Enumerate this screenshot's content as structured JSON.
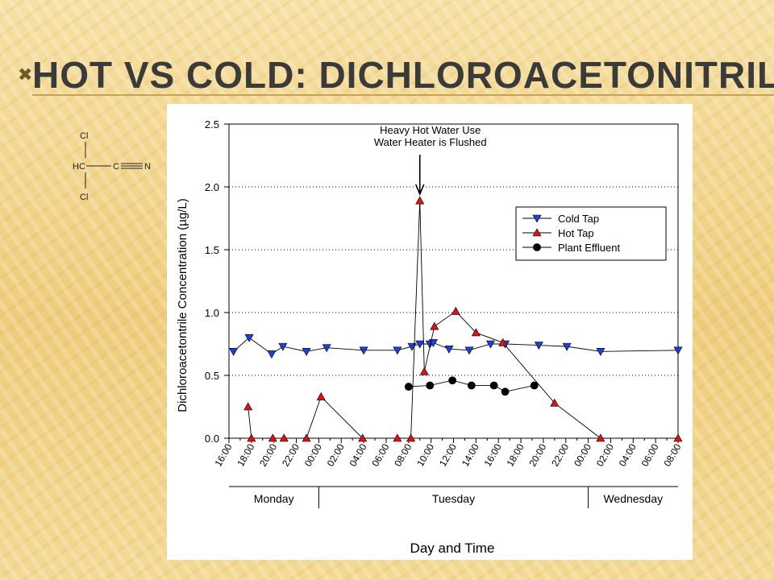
{
  "slide": {
    "title": "Hot vs Cold: Dichloroacetonitrile"
  },
  "molecule": {
    "atoms": [
      "Cl",
      "HC",
      "C",
      "N",
      "Cl"
    ]
  },
  "chart_data": {
    "type": "line",
    "title": "",
    "xlabel": "Day and Time",
    "ylabel": "Dichloroacetontrile Concentration (µg/L)",
    "ylim": [
      0,
      2.5
    ],
    "yticks": [
      "0.0",
      "0.5",
      "1.0",
      "1.5",
      "2.0",
      "2.5"
    ],
    "ytick_values": [
      0,
      0.5,
      1.0,
      1.5,
      2.0,
      2.5
    ],
    "xlim": [
      16,
      56
    ],
    "xticks": [
      "16:00",
      "18:00",
      "20:00",
      "22:00",
      "00:00",
      "02:00",
      "04:00",
      "06:00",
      "08:00",
      "10:00",
      "12:00",
      "14:00",
      "16:00",
      "18:00",
      "20:00",
      "22:00",
      "00:00",
      "02:00",
      "04:00",
      "06:00",
      "08:00"
    ],
    "days": [
      {
        "label": "Monday",
        "start": 16,
        "end": 24
      },
      {
        "label": "Tuesday",
        "start": 24,
        "end": 48
      },
      {
        "label": "Wednesday",
        "start": 48,
        "end": 56
      }
    ],
    "grid": "horizontal dotted",
    "legend_position": "right",
    "annotation": {
      "lines": [
        "Heavy Hot Water Use",
        "Water Heater is Flushed"
      ],
      "x": 33
    },
    "series": [
      {
        "name": "Cold Tap",
        "color": "#1f3fd8",
        "marker": "triangle-down",
        "x": [
          16.4,
          17.8,
          19.8,
          20.8,
          22.9,
          24.7,
          28.0,
          31.0,
          32.3,
          33.0,
          33.9,
          34.2,
          35.6,
          37.4,
          39.3,
          40.6,
          43.6,
          46.1,
          49.1,
          56.0
        ],
        "y": [
          0.69,
          0.8,
          0.67,
          0.73,
          0.69,
          0.72,
          0.7,
          0.7,
          0.73,
          0.75,
          0.75,
          0.76,
          0.71,
          0.7,
          0.75,
          0.75,
          0.74,
          0.73,
          0.69,
          0.7
        ]
      },
      {
        "name": "Hot Tap",
        "color": "#e01010",
        "marker": "triangle-up",
        "x": [
          17.7,
          18.0,
          19.9,
          20.9,
          22.9,
          24.2,
          27.9,
          31.0,
          32.2,
          33.0,
          33.4,
          34.3,
          36.2,
          38.0,
          40.4,
          45.0,
          49.1,
          56.0
        ],
        "y": [
          0.25,
          0.0,
          0.0,
          0.0,
          0.0,
          0.33,
          0.0,
          0.0,
          0.0,
          1.89,
          0.53,
          0.89,
          1.01,
          0.84,
          0.76,
          0.28,
          0.0,
          0.0
        ]
      },
      {
        "name": "Plant Effluent",
        "color": "#000000",
        "marker": "circle",
        "x": [
          32.0,
          33.9,
          35.9,
          37.6,
          39.6,
          40.6,
          43.2
        ],
        "y": [
          0.41,
          0.42,
          0.46,
          0.42,
          0.42,
          0.37,
          0.42
        ]
      }
    ]
  }
}
